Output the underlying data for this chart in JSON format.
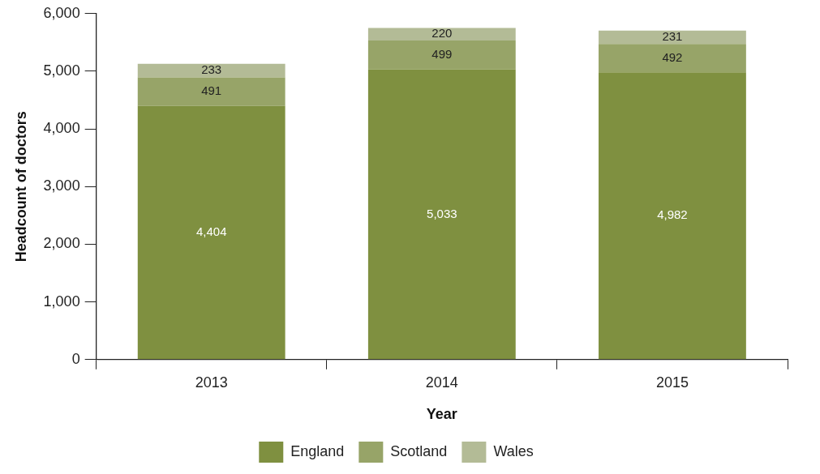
{
  "chart_data": {
    "type": "bar",
    "stacked": true,
    "xlabel": "Year",
    "ylabel": "Headcount of doctors",
    "categories": [
      "2013",
      "2014",
      "2015"
    ],
    "series": [
      {
        "name": "England",
        "color": "#7f9040",
        "values": [
          4404,
          5033,
          4982
        ],
        "value_labels": [
          "4,404",
          "5,033",
          "4,982"
        ]
      },
      {
        "name": "Scotland",
        "color": "#97a468",
        "values": [
          491,
          499,
          492
        ],
        "value_labels": [
          "491",
          "499",
          "492"
        ]
      },
      {
        "name": "Wales",
        "color": "#b3bb96",
        "values": [
          233,
          220,
          231
        ],
        "value_labels": [
          "233",
          "220",
          "231"
        ]
      }
    ],
    "ylim": [
      0,
      6000
    ],
    "yticks": [
      0,
      {
        "value": 1000,
        "label": "1,000"
      },
      {
        "value": 2000,
        "label": "2,000"
      },
      {
        "value": 3000,
        "label": "3,000"
      },
      {
        "value": 4000,
        "label": "4,000"
      },
      {
        "value": 5000,
        "label": "5,000"
      },
      {
        "value": 6000,
        "label": "6,000"
      }
    ],
    "grid": false,
    "legend": "bottom"
  }
}
